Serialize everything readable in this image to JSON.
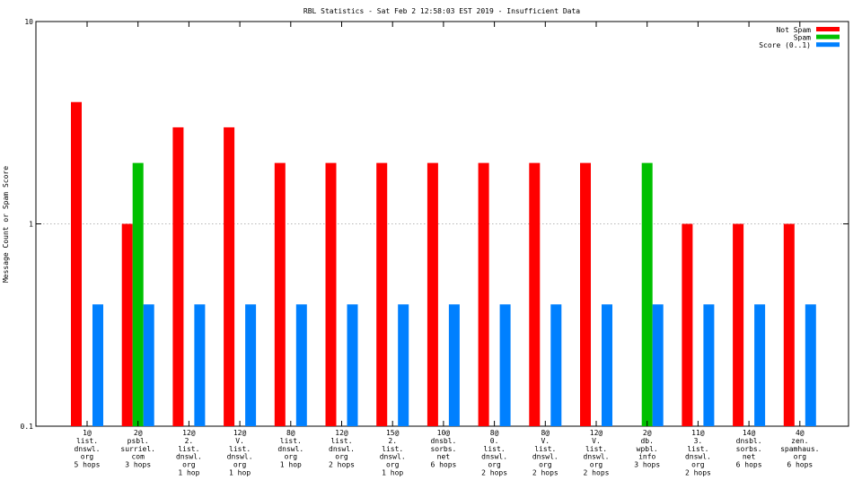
{
  "chart_data": {
    "type": "bar",
    "title": "RBL Statistics - Sat Feb  2 12:58:03 EST 2019 - Insufficient Data",
    "ylabel": "Message Count or Spam Score",
    "xlabel": "",
    "yscale": "log",
    "ylim": [
      0.1,
      10
    ],
    "yticks": [
      {
        "value": 10,
        "label": "10"
      },
      {
        "value": 1,
        "label": "1"
      },
      {
        "value": 0.1,
        "label": "0.1"
      }
    ],
    "grid": true,
    "legend_position": "top-right",
    "categories": [
      [
        "1@",
        "list.",
        "dnswl.",
        "org",
        "5 hops"
      ],
      [
        "2@",
        "psbl.",
        "surriel.",
        "com",
        "3 hops"
      ],
      [
        "12@",
        "2.",
        "list.",
        "dnswl.",
        "org",
        "1 hop"
      ],
      [
        "12@",
        "V.",
        "list.",
        "dnswl.",
        "org",
        "1 hop"
      ],
      [
        "8@",
        "list.",
        "dnswl.",
        "org",
        "1 hop"
      ],
      [
        "12@",
        "list.",
        "dnswl.",
        "org",
        "2 hops"
      ],
      [
        "15@",
        "2.",
        "list.",
        "dnswl.",
        "org",
        "1 hop"
      ],
      [
        "10@",
        "dnsbl.",
        "sorbs.",
        "net",
        "6 hops"
      ],
      [
        "8@",
        "0.",
        "list.",
        "dnswl.",
        "org",
        "2 hops"
      ],
      [
        "8@",
        "V.",
        "list.",
        "dnswl.",
        "org",
        "2 hops"
      ],
      [
        "12@",
        "V.",
        "list.",
        "dnswl.",
        "org",
        "2 hops"
      ],
      [
        "2@",
        "db.",
        "wpbl.",
        "info",
        "3 hops"
      ],
      [
        "11@",
        "3.",
        "list.",
        "dnswl.",
        "org",
        "2 hops"
      ],
      [
        "14@",
        "dnsbl.",
        "sorbs.",
        "net",
        "6 hops"
      ],
      [
        "4@",
        "zen.",
        "spamhaus.",
        "org",
        "6 hops"
      ]
    ],
    "series": [
      {
        "name": "Not Spam",
        "color": "#ff0000",
        "values": [
          4,
          1,
          3,
          3,
          2,
          2,
          2,
          2,
          2,
          2,
          2,
          null,
          1,
          1,
          1
        ]
      },
      {
        "name": "Spam",
        "color": "#00c000",
        "values": [
          null,
          2,
          null,
          null,
          null,
          null,
          null,
          null,
          null,
          null,
          null,
          2,
          null,
          null,
          null
        ]
      },
      {
        "name": "Score (0..1)",
        "color": "#0080ff",
        "values": [
          0.4,
          0.4,
          0.4,
          0.4,
          0.4,
          0.4,
          0.4,
          0.4,
          0.4,
          0.4,
          0.4,
          0.4,
          0.4,
          0.4,
          0.4
        ]
      }
    ]
  }
}
